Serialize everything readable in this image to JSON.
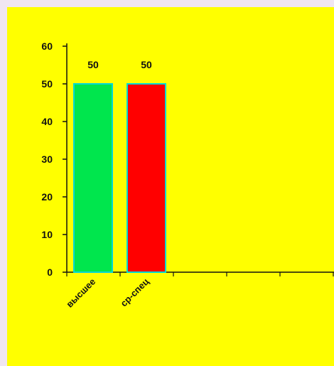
{
  "chart_data": {
    "type": "bar",
    "categories": [
      "высшее",
      "ср-спец"
    ],
    "values": [
      50,
      50
    ],
    "ylim": [
      0,
      60
    ],
    "yticks": [
      0,
      10,
      20,
      30,
      40,
      50,
      60
    ],
    "grid": false,
    "data_labels": true,
    "colors": {
      "background": "#ffff00",
      "frame": "#f0e6f2",
      "bars": [
        "#00e64d",
        "#ff0000"
      ],
      "bar_outline": "#00d8d8",
      "axis": "#111111"
    }
  }
}
